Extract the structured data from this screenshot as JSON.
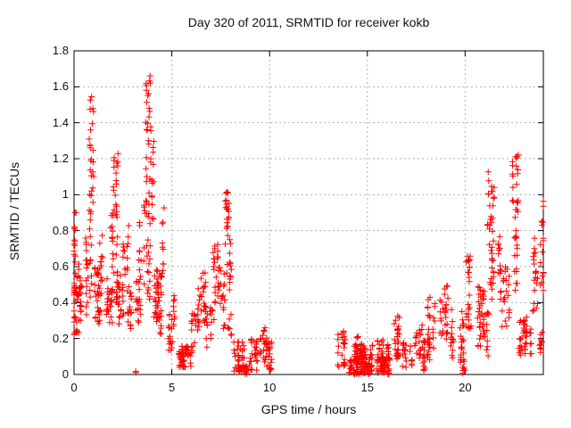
{
  "chart_data": {
    "type": "scatter",
    "title": "Day 320 of 2011, SRMTID for receiver kokb",
    "xlabel": "GPS time / hours",
    "ylabel": "SRMTID / TECUs",
    "xlim": [
      0,
      24
    ],
    "ylim": [
      0,
      1.8
    ],
    "xticks": [
      0,
      5,
      10,
      15,
      20
    ],
    "xtick_labels": [
      "0",
      "5",
      "10",
      "15",
      "20"
    ],
    "yticks": [
      0,
      0.2,
      0.4,
      0.6,
      0.8,
      1,
      1.2,
      1.4,
      1.6,
      1.8
    ],
    "ytick_labels": [
      "0",
      "0.2",
      "0.4",
      "0.6",
      "0.8",
      "1",
      "1.2",
      "1.4",
      "1.6",
      "1.8"
    ],
    "grid": "dotted",
    "legend": "none",
    "marker": "plus",
    "colors": {
      "points": "#ff0000",
      "grid": "#b0b0b0",
      "axis": "#000000",
      "background": "#ffffff",
      "text": "#111111"
    },
    "point_count_approx": 1400,
    "peaks": [
      {
        "x": 0.9,
        "y": 1.55
      },
      {
        "x": 2.1,
        "y": 1.23
      },
      {
        "x": 3.75,
        "y": 1.7
      },
      {
        "x": 8.0,
        "y": 1.02
      },
      {
        "x": 16.5,
        "y": 0.33
      },
      {
        "x": 20.2,
        "y": 0.68
      },
      {
        "x": 21.3,
        "y": 1.15
      },
      {
        "x": 22.6,
        "y": 1.23
      },
      {
        "x": 24.0,
        "y": 0.99
      }
    ],
    "data_gaps_hours": [
      [
        10.15,
        13.45
      ]
    ],
    "clusters_format": "[x_start_hour, x_end_hour, y_min_TECU, y_max_TECU, n_points]",
    "clusters": [
      [
        0.0,
        0.12,
        0.55,
        0.92,
        14
      ],
      [
        0.0,
        0.32,
        0.22,
        0.55,
        32
      ],
      [
        0.25,
        0.5,
        0.3,
        0.62,
        22
      ],
      [
        0.5,
        0.72,
        0.32,
        0.8,
        16
      ],
      [
        0.8,
        1.0,
        0.95,
        1.55,
        26
      ],
      [
        0.82,
        1.0,
        0.38,
        0.95,
        14
      ],
      [
        1.05,
        1.45,
        0.28,
        0.6,
        30
      ],
      [
        1.35,
        1.58,
        0.35,
        0.78,
        14
      ],
      [
        1.6,
        1.95,
        0.27,
        0.55,
        28
      ],
      [
        1.88,
        2.05,
        0.55,
        0.95,
        12
      ],
      [
        2.0,
        2.22,
        0.85,
        1.23,
        20
      ],
      [
        2.05,
        2.22,
        0.4,
        0.85,
        10
      ],
      [
        2.2,
        2.6,
        0.28,
        0.58,
        26
      ],
      [
        2.45,
        2.75,
        0.55,
        0.88,
        14
      ],
      [
        2.7,
        3.0,
        0.25,
        0.5,
        18
      ],
      [
        3.08,
        3.16,
        0.005,
        0.02,
        2
      ],
      [
        3.15,
        3.55,
        0.28,
        0.55,
        20
      ],
      [
        3.2,
        3.6,
        0.5,
        0.95,
        14
      ],
      [
        3.6,
        3.9,
        0.85,
        1.7,
        34
      ],
      [
        3.58,
        3.95,
        0.3,
        0.85,
        16
      ],
      [
        3.9,
        4.1,
        0.85,
        1.35,
        12
      ],
      [
        3.95,
        4.3,
        0.28,
        0.6,
        24
      ],
      [
        4.3,
        4.6,
        0.22,
        0.58,
        22
      ],
      [
        4.42,
        4.62,
        0.55,
        0.95,
        10
      ],
      [
        4.6,
        5.05,
        0.12,
        0.35,
        18
      ],
      [
        5.0,
        5.15,
        0.25,
        0.45,
        8
      ],
      [
        5.15,
        6.05,
        0.04,
        0.16,
        56
      ],
      [
        6.05,
        6.45,
        0.15,
        0.35,
        18
      ],
      [
        6.35,
        6.75,
        0.28,
        0.57,
        26
      ],
      [
        6.75,
        7.05,
        0.15,
        0.38,
        14
      ],
      [
        7.05,
        7.4,
        0.3,
        0.78,
        26
      ],
      [
        7.4,
        7.75,
        0.25,
        0.6,
        18
      ],
      [
        7.75,
        8.15,
        0.55,
        1.02,
        30
      ],
      [
        7.8,
        8.15,
        0.2,
        0.55,
        12
      ],
      [
        8.15,
        9.35,
        0.01,
        0.2,
        60
      ],
      [
        8.4,
        9.05,
        0.0,
        0.05,
        18
      ],
      [
        9.4,
        9.8,
        0.05,
        0.3,
        22
      ],
      [
        9.78,
        10.15,
        0.02,
        0.2,
        20
      ],
      [
        13.45,
        13.9,
        0.04,
        0.25,
        26
      ],
      [
        13.9,
        16.15,
        0.0,
        0.1,
        150
      ],
      [
        13.95,
        16.1,
        0.08,
        0.17,
        40
      ],
      [
        14.3,
        14.6,
        0.1,
        0.22,
        10
      ],
      [
        15.55,
        15.95,
        0.08,
        0.22,
        14
      ],
      [
        16.35,
        16.8,
        0.08,
        0.33,
        26
      ],
      [
        16.8,
        17.4,
        0.03,
        0.18,
        22
      ],
      [
        17.4,
        17.8,
        0.08,
        0.28,
        18
      ],
      [
        17.8,
        18.1,
        0.02,
        0.2,
        16
      ],
      [
        18.05,
        18.65,
        0.08,
        0.43,
        30
      ],
      [
        18.7,
        19.25,
        0.18,
        0.5,
        28
      ],
      [
        19.25,
        19.95,
        0.05,
        0.38,
        32
      ],
      [
        19.7,
        19.95,
        0.0,
        0.1,
        8
      ],
      [
        19.95,
        20.35,
        0.25,
        0.68,
        26
      ],
      [
        20.35,
        20.95,
        0.15,
        0.5,
        36
      ],
      [
        21.0,
        21.2,
        0.1,
        0.35,
        12
      ],
      [
        21.1,
        21.45,
        0.35,
        0.72,
        16
      ],
      [
        21.15,
        21.45,
        0.72,
        1.15,
        24
      ],
      [
        21.5,
        22.3,
        0.25,
        0.6,
        28
      ],
      [
        21.6,
        21.85,
        0.55,
        0.78,
        10
      ],
      [
        22.35,
        22.75,
        0.9,
        1.23,
        22
      ],
      [
        22.4,
        22.75,
        0.45,
        0.9,
        16
      ],
      [
        22.75,
        23.45,
        0.1,
        0.32,
        40
      ],
      [
        23.45,
        23.8,
        0.3,
        0.78,
        20
      ],
      [
        23.6,
        23.95,
        0.08,
        0.25,
        12
      ],
      [
        23.9,
        24.0,
        0.45,
        0.99,
        16
      ]
    ]
  }
}
